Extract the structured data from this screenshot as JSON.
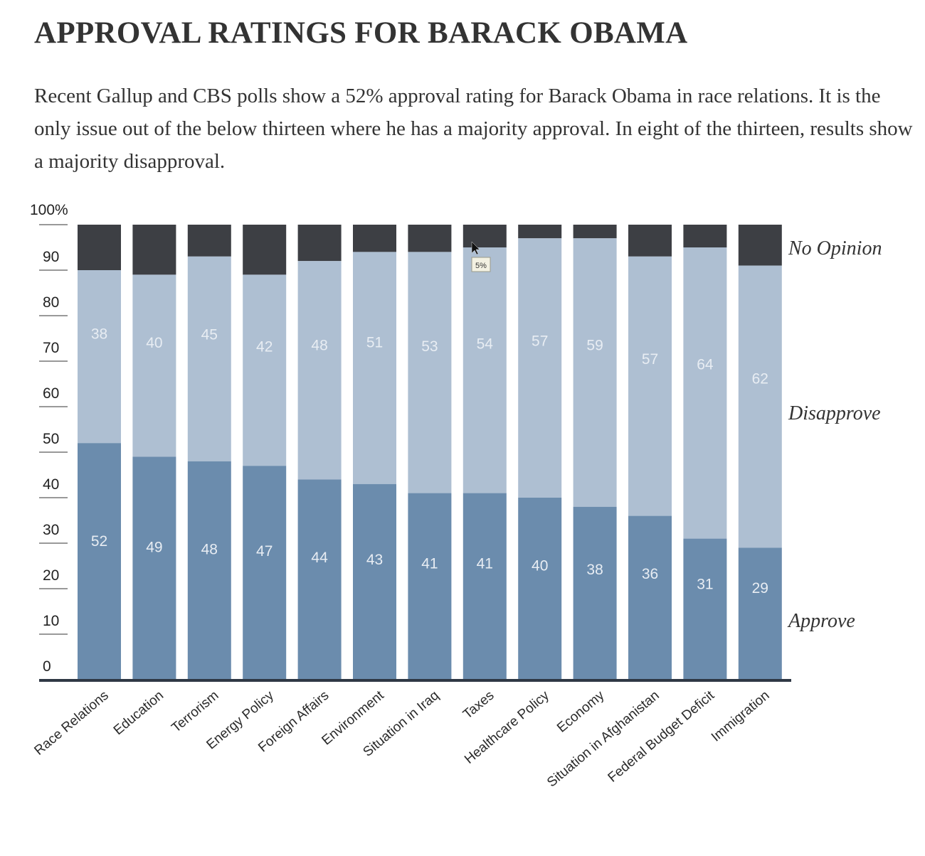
{
  "title": "APPROVAL RATINGS FOR BARACK OBAMA",
  "subtitle": "Recent Gallup and CBS polls show a 52% approval rating for Barack Obama in race relations. It is the only issue out of the below thirteen where he has a majority approval. In eight of the thirteen, results show a majority disapproval.",
  "colors": {
    "approve": "#6b8cad",
    "disapprove": "#aebfd2",
    "no_opinion": "#3d3f44",
    "axis": "#2f3845",
    "tick": "#999999"
  },
  "chart_data": {
    "type": "bar",
    "stacked": true,
    "categories": [
      "Race Relations",
      "Education",
      "Terrorism",
      "Energy Policy",
      "Foreign Affairs",
      "Environment",
      "Situation in Iraq",
      "Taxes",
      "Healthcare Policy",
      "Economy",
      "Situation in Afghanistan",
      "Federal Budget Deficit",
      "Immigration"
    ],
    "series": [
      {
        "name": "Approve",
        "values": [
          52,
          49,
          48,
          47,
          44,
          43,
          41,
          41,
          40,
          38,
          36,
          31,
          29
        ]
      },
      {
        "name": "Disapprove",
        "values": [
          38,
          40,
          45,
          42,
          48,
          51,
          53,
          54,
          57,
          59,
          57,
          64,
          62
        ]
      },
      {
        "name": "No Opinion",
        "values": [
          10,
          11,
          7,
          11,
          8,
          6,
          6,
          5,
          3,
          3,
          7,
          5,
          9
        ]
      }
    ],
    "y_ticks": [
      "100%",
      "90",
      "80",
      "70",
      "60",
      "50",
      "40",
      "30",
      "20",
      "10",
      "0"
    ],
    "ylim": [
      0,
      100
    ],
    "legend_placement": "right",
    "annotation": "5%"
  }
}
